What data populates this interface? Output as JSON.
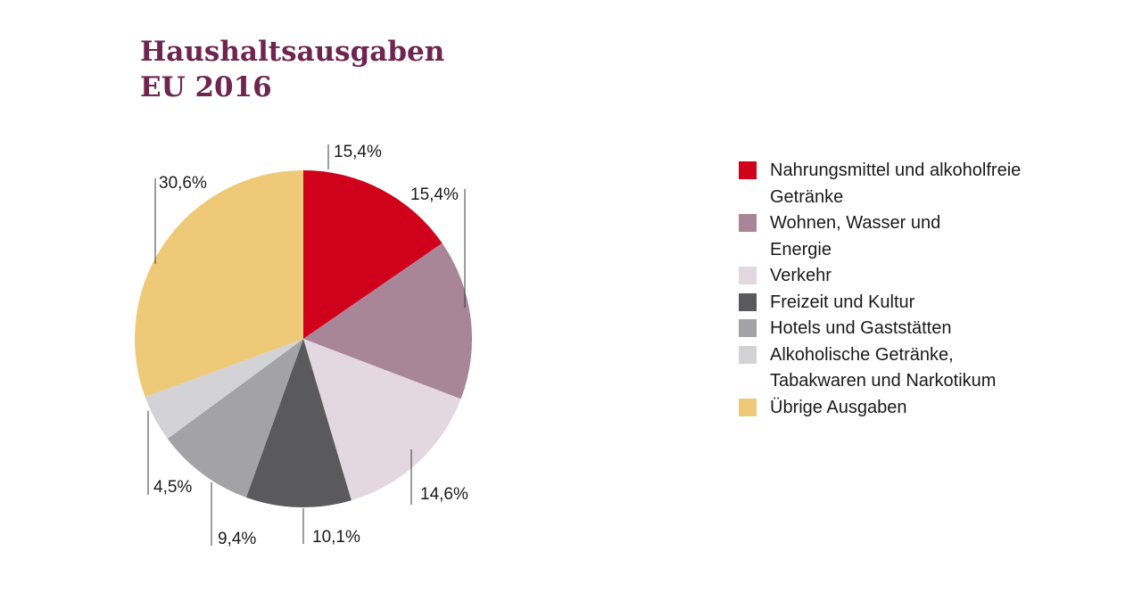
{
  "title": {
    "line1": "Haushaltsausgaben",
    "line2": "EU 2016"
  },
  "chart_data": {
    "type": "pie",
    "title": "Haushaltsausgaben EU 2016",
    "start": "12 o'clock, clockwise",
    "slices": [
      {
        "name": "Nahrungsmittel und alkoholfreie Getränke",
        "value": 15.4,
        "label": "15,4%",
        "color": "#d0021b"
      },
      {
        "name": "Wohnen, Wasser und Energie",
        "value": 15.4,
        "label": "15,4%",
        "color": "#a88698"
      },
      {
        "name": "Verkehr",
        "value": 14.6,
        "label": "14,6%",
        "color": "#e3d7e0"
      },
      {
        "name": "Freizeit und Kultur",
        "value": 10.1,
        "label": "10,1%",
        "color": "#5a5a5c"
      },
      {
        "name": "Hotels und Gaststätten",
        "value": 9.4,
        "label": "9,4%",
        "color": "#a3a3a5"
      },
      {
        "name": "Alkoholische Getränke, Tabakwaren und Narkotikum",
        "value": 4.5,
        "label": "4,5%",
        "color": "#d3d3d5"
      },
      {
        "name": "Übrige Ausgaben",
        "value": 30.6,
        "label": "30,6%",
        "color": "#eeca78"
      }
    ],
    "legend": {
      "placement": "right",
      "entries": [
        {
          "lines": [
            "Nahrungsmittel und alkoholfreie",
            "Getränke"
          ],
          "color": "#d0021b"
        },
        {
          "lines": [
            "Wohnen, Wasser und",
            "Energie"
          ],
          "color": "#a88698"
        },
        {
          "lines": [
            "Verkehr"
          ],
          "color": "#e3d7e0"
        },
        {
          "lines": [
            "Freizeit und Kultur"
          ],
          "color": "#5a5a5c"
        },
        {
          "lines": [
            "Hotels und Gaststätten"
          ],
          "color": "#a3a3a5"
        },
        {
          "lines": [
            "Alkoholische Getränke,",
            "Tabakwaren und Narkotikum"
          ],
          "color": "#d3d3d5"
        },
        {
          "lines": [
            "Übrige Ausgaben"
          ],
          "color": "#eeca78"
        }
      ]
    }
  }
}
